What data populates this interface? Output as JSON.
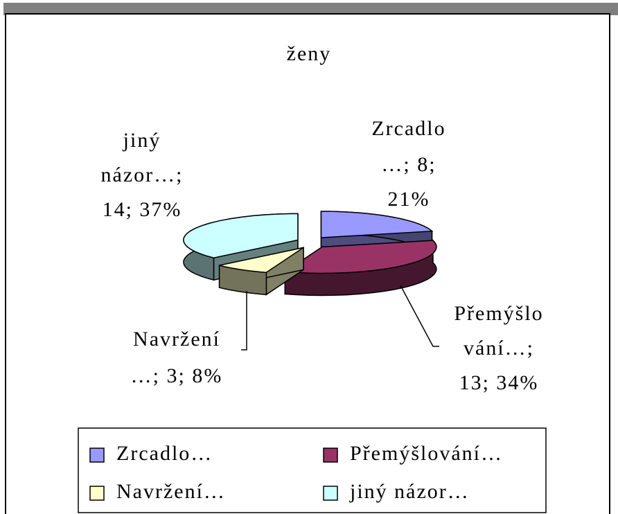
{
  "chart_data": {
    "type": "pie3d",
    "title": "ženy",
    "categories": [
      "Zrcadlo…",
      "Přemýšlování…",
      "Navržení…",
      "jiný názor…"
    ],
    "values": [
      8,
      13,
      3,
      14
    ],
    "value_labels": [
      [
        "Zrcadlo",
        "…; 8;",
        "21%"
      ],
      [
        "Přemýšlo",
        "vání…;",
        "13; 34%"
      ],
      [
        "Navržení",
        "…; 3; 8%"
      ],
      [
        "jiný",
        "názor…;",
        "14; 37%"
      ]
    ],
    "colors": [
      "#9999ff",
      "#993366",
      "#ffffcc",
      "#ccffff"
    ],
    "legend": "bottom"
  }
}
